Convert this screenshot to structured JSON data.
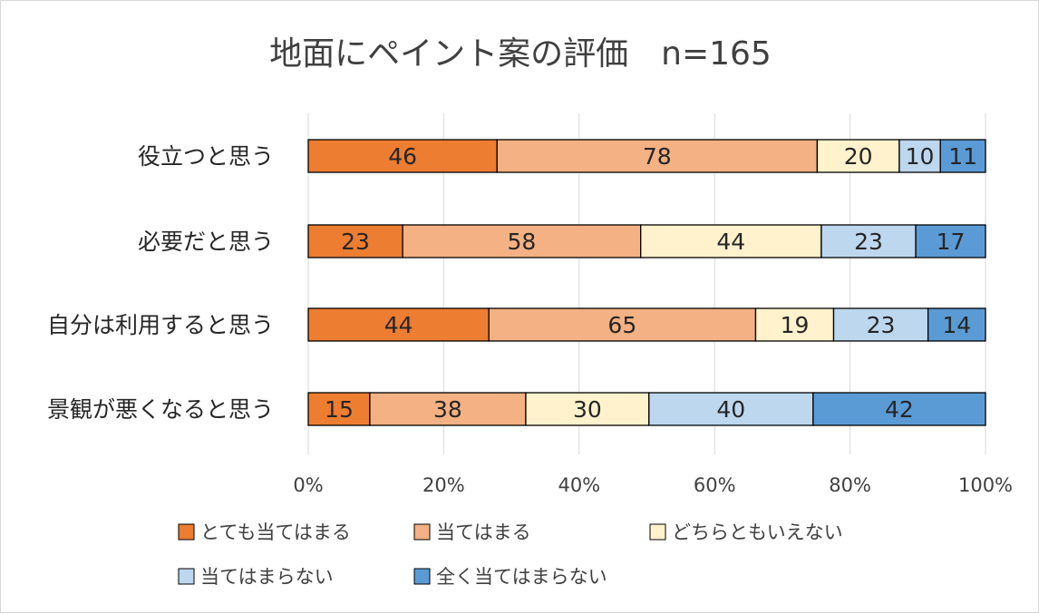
{
  "chart_data": {
    "type": "bar",
    "orientation": "horizontal",
    "stacked": "percent",
    "title": "地面にペイント案の評価　n=165",
    "categories": [
      "役立つと思う",
      "必要だと思う",
      "自分は利用すると思う",
      "景観が悪くなると思う"
    ],
    "series": [
      {
        "name": "とても当てはまる",
        "color": "#ed7d31",
        "values": [
          46,
          23,
          44,
          15
        ]
      },
      {
        "name": "当てはまる",
        "color": "#f4b183",
        "values": [
          78,
          58,
          65,
          38
        ]
      },
      {
        "name": "どちらともいえない",
        "color": "#fff2cc",
        "values": [
          20,
          44,
          19,
          30
        ]
      },
      {
        "name": "当てはまらない",
        "color": "#bdd7ee",
        "values": [
          10,
          23,
          23,
          40
        ]
      },
      {
        "name": "全く当てはまらない",
        "color": "#5b9bd5",
        "values": [
          11,
          17,
          14,
          42
        ]
      }
    ],
    "x_ticks": [
      "0%",
      "20%",
      "40%",
      "60%",
      "80%",
      "100%"
    ],
    "xlim": [
      0,
      100
    ],
    "grid": "vertical",
    "legend": "bottom"
  }
}
